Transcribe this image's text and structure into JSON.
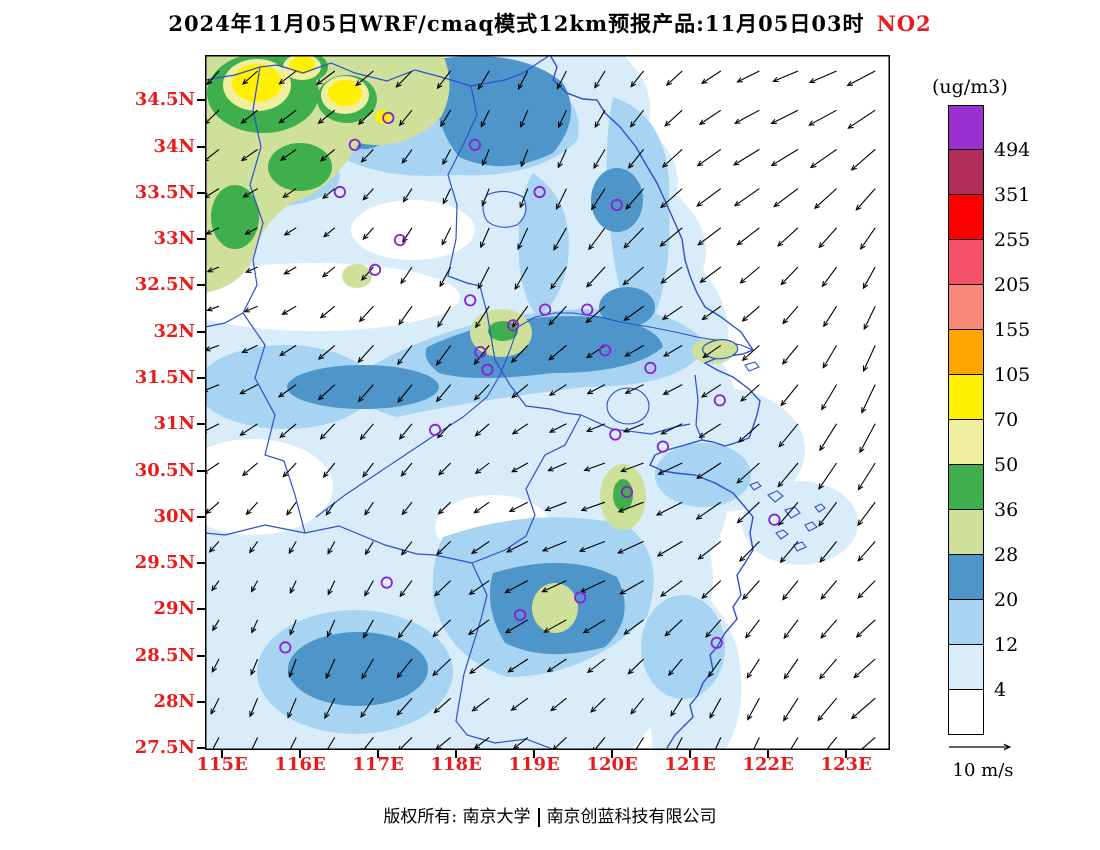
{
  "title": {
    "main": "2024年11月05日WRF/cmaq模式12km预报产品:11月05日03时",
    "pollutant": "NO2"
  },
  "colorbar_unit": "(ug/m3)",
  "wind_legend_label": "10 m/s",
  "footer": {
    "owner": "版权所有: 南京大学",
    "company": "南京创蓝科技有限公司"
  },
  "axes": {
    "lat_ticks": [
      "34.5N",
      "34N",
      "33.5N",
      "33N",
      "32.5N",
      "32N",
      "31.5N",
      "31N",
      "30.5N",
      "30N",
      "29.5N",
      "29N",
      "28.5N",
      "28N",
      "27.5N"
    ],
    "lon_ticks": [
      "115E",
      "116E",
      "117E",
      "118E",
      "119E",
      "120E",
      "121E",
      "122E",
      "123E"
    ],
    "tick_label_color": "#e81c1c"
  },
  "colors": {
    "station_marker": "#8b1fd4",
    "boundary_line": "#2b4fd0",
    "title_accent": "#e81c1c",
    "arrow": "#000000"
  },
  "chart_data": {
    "type": "heatmap",
    "title": "2024年11月05日WRF/cmaq模式12km预报产品:11月05日03时 NO2",
    "variable": "NO2",
    "unit": "ug/m3",
    "projection_extent": {
      "lon": [
        114.8,
        123.6
      ],
      "lat": [
        27.5,
        35.0
      ]
    },
    "lon_tick_values": [
      115,
      116,
      117,
      118,
      119,
      120,
      121,
      122,
      123
    ],
    "lat_tick_values": [
      34.5,
      34,
      33.5,
      33,
      32.5,
      32,
      31.5,
      31,
      30.5,
      30,
      29.5,
      29,
      28.5,
      28,
      27.5
    ],
    "contour_levels": [
      4,
      12,
      20,
      28,
      36,
      50,
      70,
      105,
      155,
      205,
      255,
      351,
      494
    ],
    "level_colors_low_to_high": [
      "#ffffff",
      "#d9ecf9",
      "#a6d4f2",
      "#4e96c9",
      "#cfe09a",
      "#3fae4c",
      "#efef9f",
      "#ffef00",
      "#ffa500",
      "#fa8878",
      "#f4506a",
      "#ff0000",
      "#b02c5a",
      "#9b30d0"
    ],
    "wind": {
      "reference_label": "10 m/s",
      "prevailing": "northeasterly flow; arrows point toward the southwest over the whole domain, stronger offshore"
    },
    "field_summary": [
      {
        "region": "northwest corner (115-117.3E, 33.3-35N)",
        "values_ugm3": "28-105, green/yellow maximum band"
      },
      {
        "region": "north-central patch (117.8-119.5E, 34-35N)",
        "values_ugm3": "20-28"
      },
      {
        "region": "central band (116-120E, 31-32.2N) incl. Nanjing khaki core near 118.3E/32N",
        "values_ugm3": "12-36"
      },
      {
        "region": "south band (117.5-120E, 28.5-29.5N) and bottom-left (115.5-116.8E, 28-29N)",
        "values_ugm3": "12-36"
      },
      {
        "region": "Yangtze mouth / Chongming (121.2-121.8E, 31.4-31.8N)",
        "values_ugm3": "20-36"
      },
      {
        "region": "offshore ocean east of ~120.8E",
        "values_ugm3": "mostly below 4-12"
      }
    ],
    "station_markers_lonlat": [
      [
        117.13,
        34.31
      ],
      [
        116.7,
        34.02
      ],
      [
        118.24,
        34.02
      ],
      [
        116.51,
        33.51
      ],
      [
        119.07,
        33.51
      ],
      [
        120.06,
        33.37
      ],
      [
        117.28,
        32.99
      ],
      [
        116.96,
        32.67
      ],
      [
        118.18,
        32.34
      ],
      [
        119.14,
        32.24
      ],
      [
        119.68,
        32.24
      ],
      [
        118.73,
        32.07
      ],
      [
        118.31,
        31.78
      ],
      [
        119.91,
        31.8
      ],
      [
        120.49,
        31.61
      ],
      [
        118.4,
        31.59
      ],
      [
        117.73,
        30.94
      ],
      [
        120.04,
        30.89
      ],
      [
        120.65,
        30.76
      ],
      [
        121.38,
        31.26
      ],
      [
        120.19,
        30.27
      ],
      [
        119.59,
        29.13
      ],
      [
        117.11,
        29.29
      ],
      [
        118.82,
        28.94
      ],
      [
        115.81,
        28.59
      ],
      [
        121.34,
        28.64
      ],
      [
        122.08,
        29.97
      ]
    ]
  }
}
